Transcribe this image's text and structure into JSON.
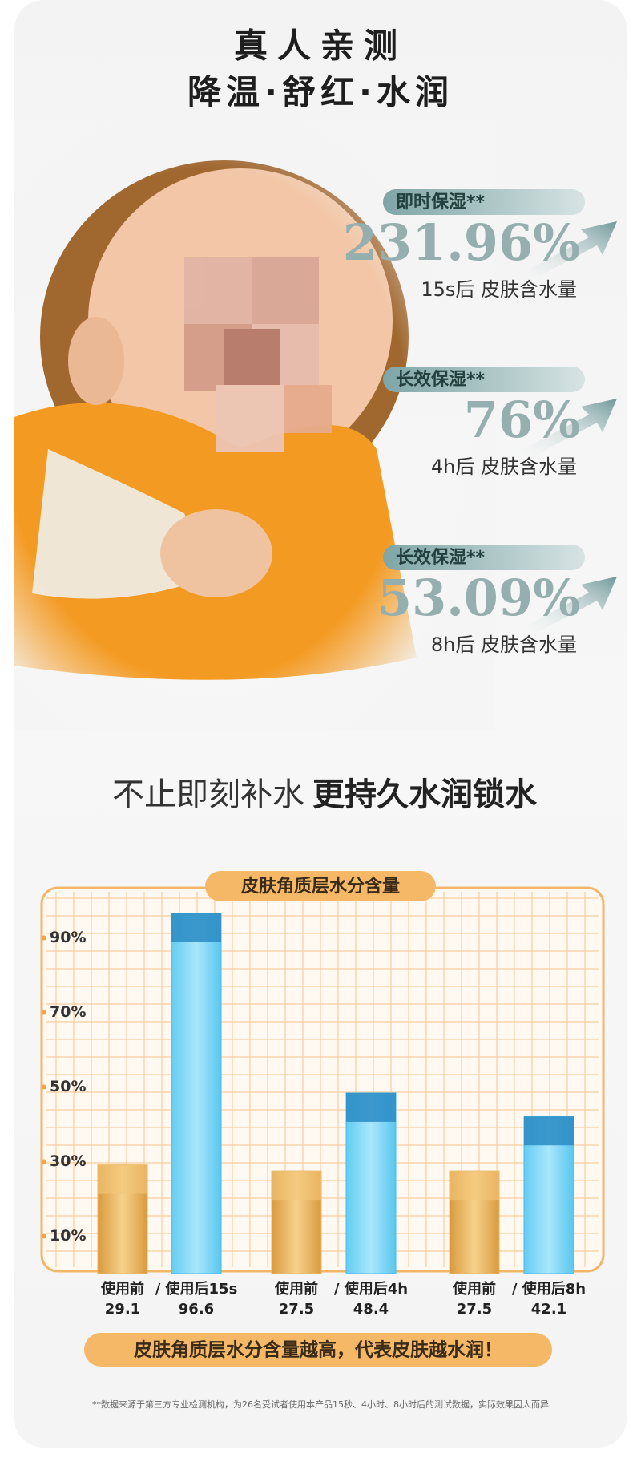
{
  "header": {
    "title": "真人亲测",
    "subtitle": "降温·舒红·水润"
  },
  "stats": [
    {
      "tag": "即时保湿**",
      "value": "231.96%",
      "caption": "15s后 皮肤含水量"
    },
    {
      "tag": "长效保湿**",
      "value": "76%",
      "caption": "4h后 皮肤含水量"
    },
    {
      "tag": "长效保湿**",
      "value": "53.09%",
      "caption": "8h后 皮肤含水量"
    }
  ],
  "headline": {
    "light": "不止即刻补水",
    "bold": "更持久水润锁水"
  },
  "chart_data": {
    "type": "bar",
    "title": "皮肤角质层水分含量",
    "categories": [
      "使用前",
      "/ 使用后15s",
      "使用前",
      "/ 使用后4h",
      "使用前",
      "/ 使用后8h"
    ],
    "values": [
      29.1,
      96.6,
      27.5,
      48.4,
      27.5,
      42.1
    ],
    "colors": [
      "#e8b45e",
      "#47bde9",
      "#e8b45e",
      "#47bde9",
      "#e8b45e",
      "#47bde9"
    ],
    "ylim": [
      0,
      100
    ],
    "yticks": [
      {
        "value": 10,
        "label": "10%"
      },
      {
        "value": 30,
        "label": "30%"
      },
      {
        "value": 50,
        "label": "50%"
      },
      {
        "value": 70,
        "label": "70%"
      },
      {
        "value": 90,
        "label": "90%"
      }
    ],
    "grid": true
  },
  "banner": "皮肤角质层水分含量越高，代表皮肤越水润！",
  "footnote": "**数据来源于第三方专业检测机构，为26名受试者使用本产品15秒、4小时、8小时后的测试数据，实际效果因人而异"
}
